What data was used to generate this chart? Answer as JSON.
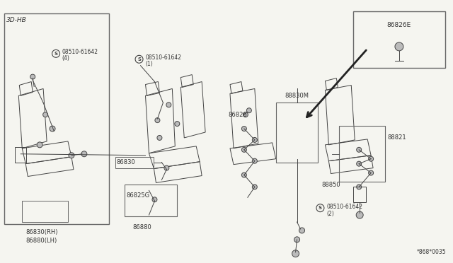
{
  "bg_color": "#f5f5f0",
  "line_color": "#444444",
  "text_color": "#333333",
  "border_color": "#666666",
  "figure_number": "*868*0035",
  "labels": {
    "top_left_box": "3D-HB",
    "bottom_left_1": "86830(RH)",
    "bottom_left_2": "86880(LH)",
    "screw4": "08510-61642",
    "screw4b": "(4)",
    "screw1": "08510-61642",
    "screw1b": "(1)",
    "screw2": "08510-61642",
    "screw2b": "(2)",
    "p86830": "86830",
    "p86826": "86826",
    "p86825G": "86825G",
    "p86880": "86880",
    "p88830M": "88830M",
    "p88821": "88821",
    "p88850": "88850",
    "p86826E": "86826E"
  }
}
